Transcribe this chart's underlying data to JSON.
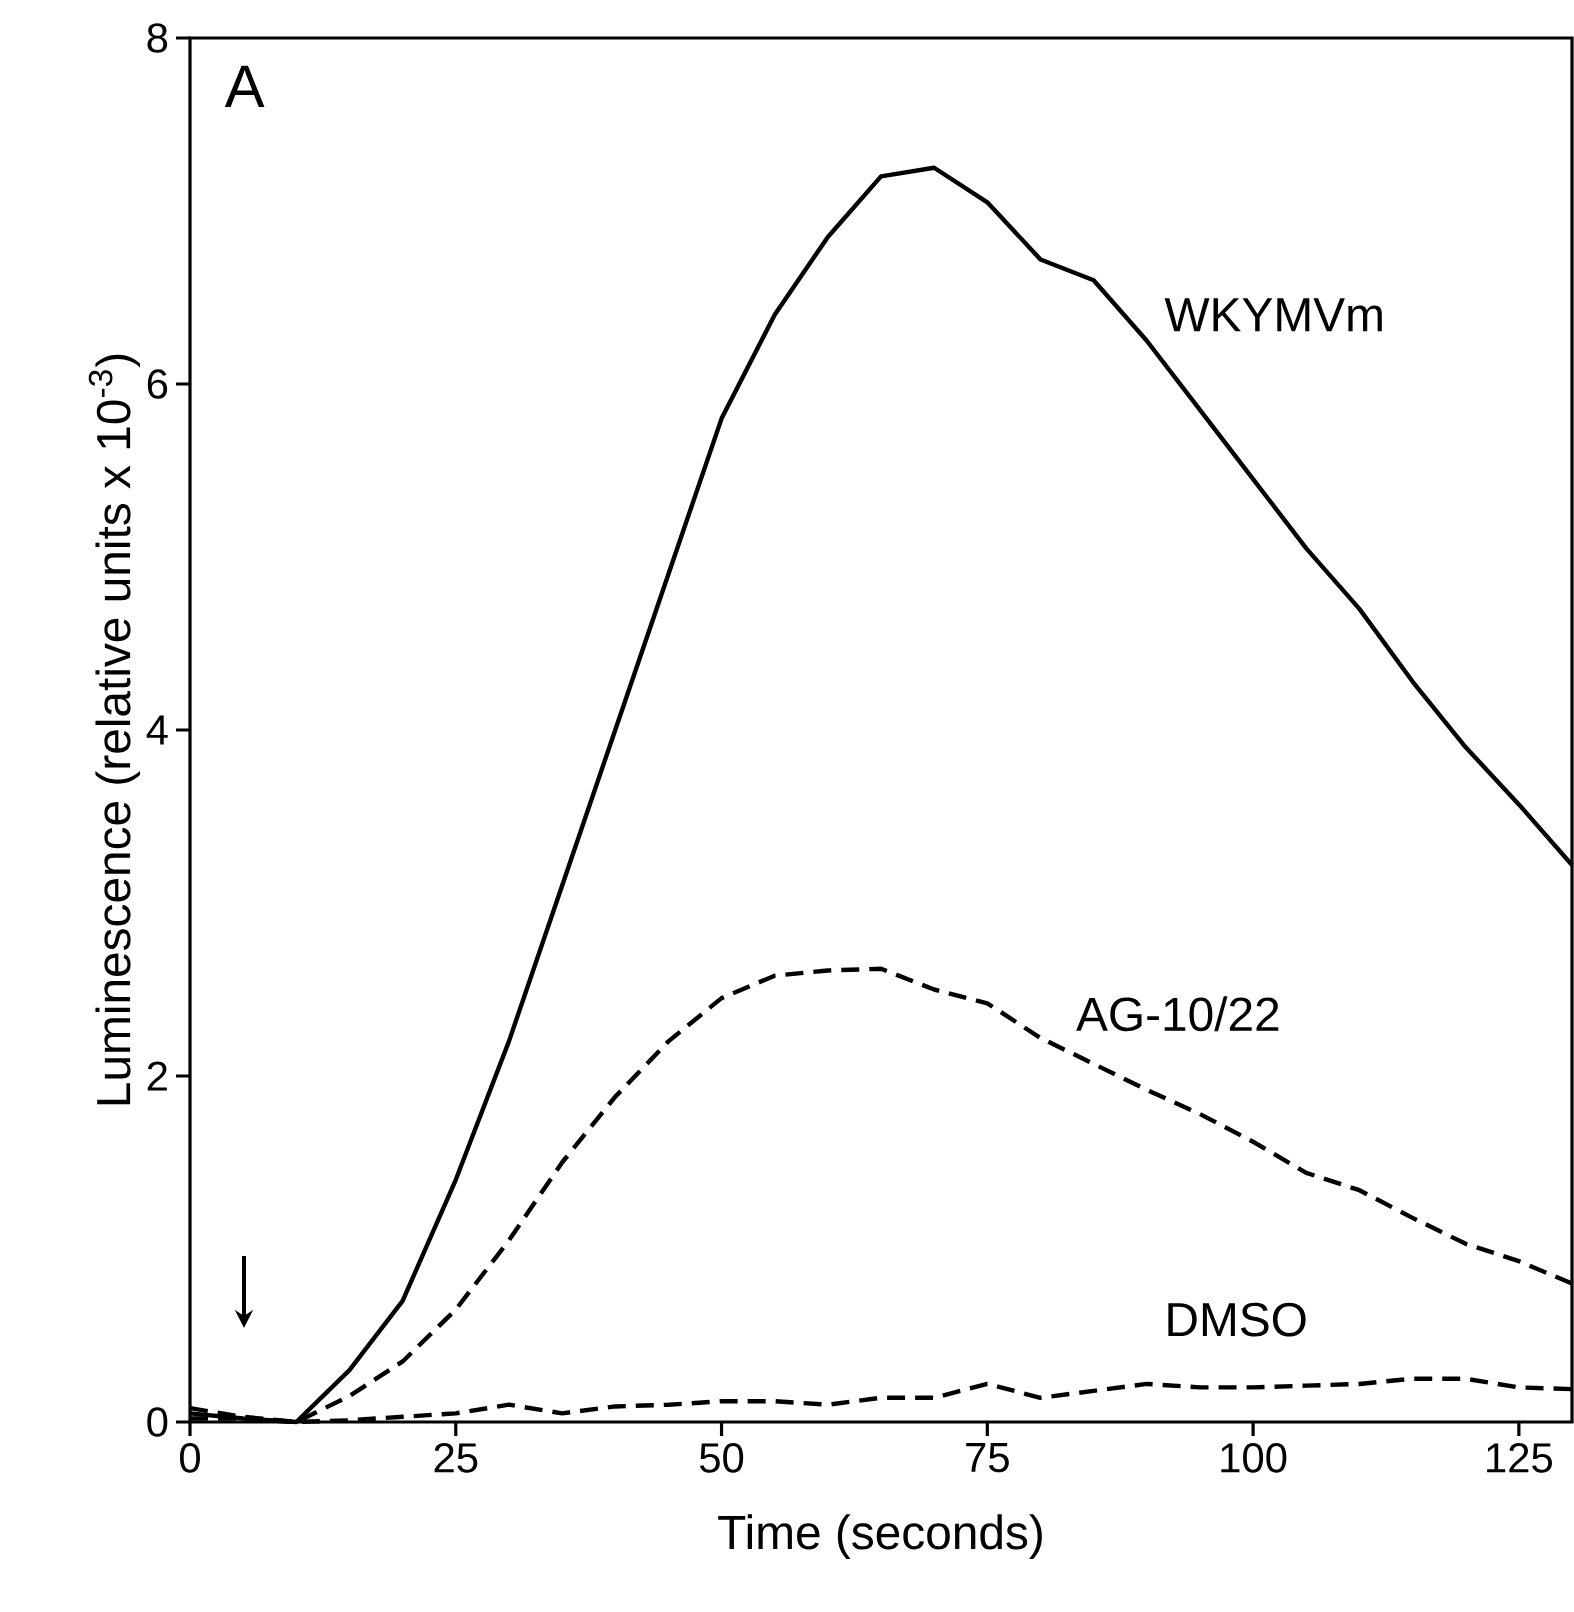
{
  "chart_data": {
    "type": "line",
    "xlabel": "Time (seconds)",
    "ylabel": "Luminescence (relative units x 10$^{-3}$)",
    "annotations": [
      "A"
    ],
    "xlim": [
      0,
      130
    ],
    "ylim": [
      0,
      8
    ],
    "xticks": [
      0,
      25,
      50,
      75,
      100,
      125
    ],
    "yticks": [
      0,
      2,
      4,
      6,
      8
    ],
    "grid": false,
    "legend": false,
    "marker": "none",
    "x": [
      0,
      5,
      10,
      15,
      20,
      25,
      30,
      35,
      40,
      45,
      50,
      55,
      60,
      65,
      70,
      75,
      80,
      85,
      90,
      95,
      100,
      105,
      110,
      115,
      120,
      125,
      130
    ],
    "series": [
      {
        "name": "WKYMVm",
        "color": "#000000",
        "line_style": "solid",
        "values": [
          0.05,
          0.02,
          0.0,
          0.3,
          0.7,
          1.4,
          2.2,
          3.1,
          4.0,
          4.9,
          5.8,
          6.4,
          6.85,
          7.2,
          7.25,
          7.05,
          6.72,
          6.6,
          6.25,
          5.85,
          5.45,
          5.05,
          4.7,
          4.28,
          3.9,
          3.57,
          3.22
        ]
      },
      {
        "name": "AG-10/22",
        "color": "#000000",
        "line_style": "dashed",
        "values": [
          0.08,
          0.03,
          0.0,
          0.15,
          0.35,
          0.65,
          1.05,
          1.5,
          1.88,
          2.2,
          2.45,
          2.58,
          2.61,
          2.62,
          2.5,
          2.42,
          2.22,
          2.07,
          1.92,
          1.78,
          1.62,
          1.44,
          1.34,
          1.18,
          1.03,
          0.93,
          0.8
        ]
      },
      {
        "name": "DMSO",
        "color": "#000000",
        "line_style": "dashed",
        "values": [
          0.02,
          0.02,
          0.0,
          0.01,
          0.03,
          0.05,
          0.1,
          0.05,
          0.09,
          0.1,
          0.12,
          0.12,
          0.1,
          0.14,
          0.14,
          0.22,
          0.14,
          0.18,
          0.22,
          0.2,
          0.2,
          0.21,
          0.22,
          0.25,
          0.25,
          0.2,
          0.19
        ]
      }
    ]
  }
}
